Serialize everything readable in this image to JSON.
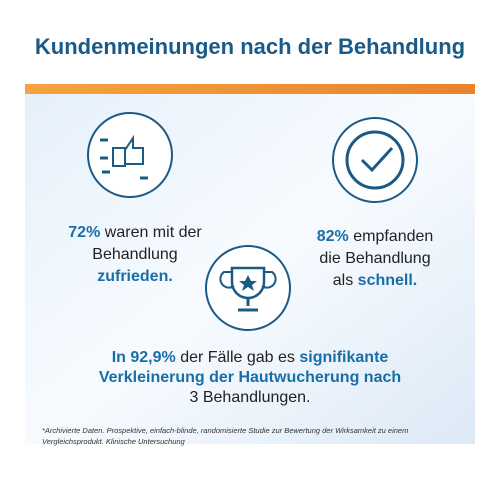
{
  "title": "Kundenmeinungen nach der Behandlung",
  "stats": [
    {
      "lines": [
        [
          {
            "text": "72%",
            "strong": true
          },
          {
            "text": "waren mit der",
            "strong": false
          }
        ],
        [
          {
            "text": "Behandlung",
            "strong": false
          }
        ],
        [
          {
            "text": "zufrieden.",
            "strong": true
          }
        ]
      ]
    },
    {
      "lines": [
        [
          {
            "text": "82%",
            "strong": true
          },
          {
            "text": "empfanden",
            "strong": false
          }
        ],
        [
          {
            "text": "die Behandlung",
            "strong": false
          }
        ],
        [
          {
            "text": "als",
            "strong": false
          },
          {
            "text": "schnell.",
            "strong": true
          }
        ]
      ]
    }
  ],
  "summary": {
    "lines": [
      [
        {
          "text": "In 92,9%",
          "strong": true
        },
        {
          "text": "der Fälle gab es",
          "strong": false
        },
        {
          "text": "signifikante",
          "strong": true
        }
      ],
      [
        {
          "text": "Verkleinerung der Hautwucherung nach",
          "strong": true
        }
      ],
      [
        {
          "text": "3 Behandlungen.",
          "strong": false
        }
      ]
    ]
  },
  "footnote": "*Archivierte Daten. Prospektive, einfach-blinde, randomisierte Studie zur Bewertung der Wirksamkeit zu einem Vergleichsprodukt. Klinische Untersuchung"
}
